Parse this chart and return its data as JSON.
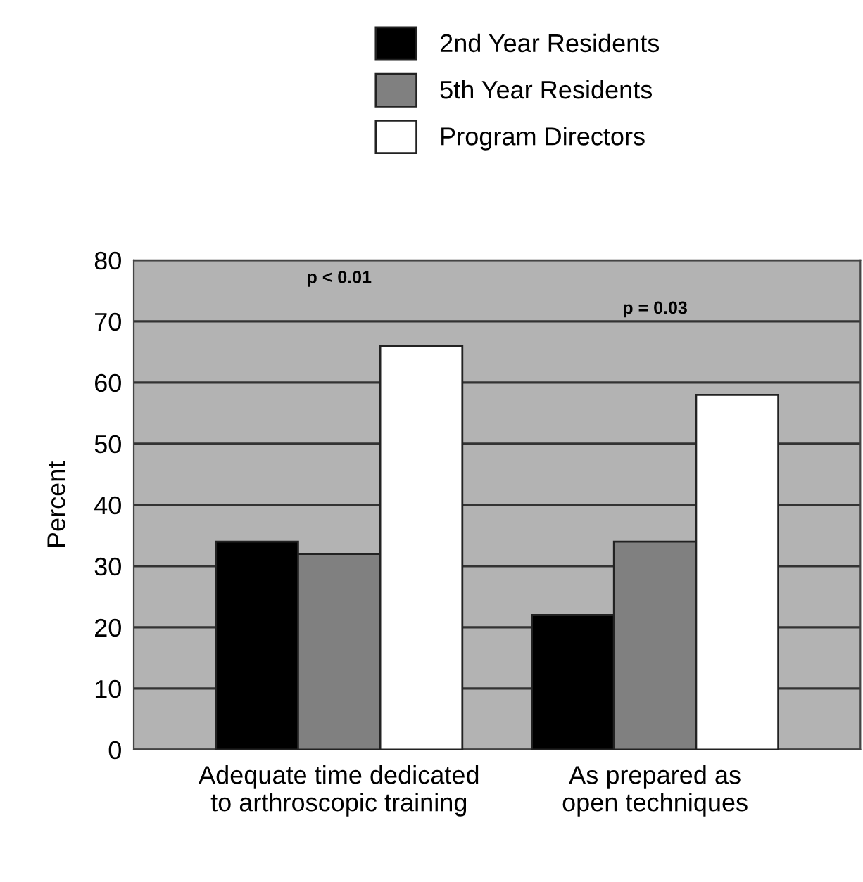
{
  "chart_data": {
    "type": "bar",
    "ylabel": "Percent",
    "categories": [
      "Adequate time dedicated\nto arthroscopic training",
      "As prepared as\nopen techniques"
    ],
    "series": [
      {
        "name": "2nd Year Residents",
        "color": "#000000",
        "values": [
          34,
          22
        ]
      },
      {
        "name": "5th Year Residents",
        "color": "#808080",
        "values": [
          32,
          34
        ]
      },
      {
        "name": "Program Directors",
        "color": "#ffffff",
        "values": [
          66,
          58
        ]
      }
    ],
    "ylim": [
      0,
      80
    ],
    "yticks": [
      0,
      10,
      20,
      30,
      40,
      50,
      60,
      70,
      80
    ],
    "grid": "y",
    "legend": "top",
    "annotations": [
      "p < 0.01",
      "p = 0.03"
    ]
  }
}
